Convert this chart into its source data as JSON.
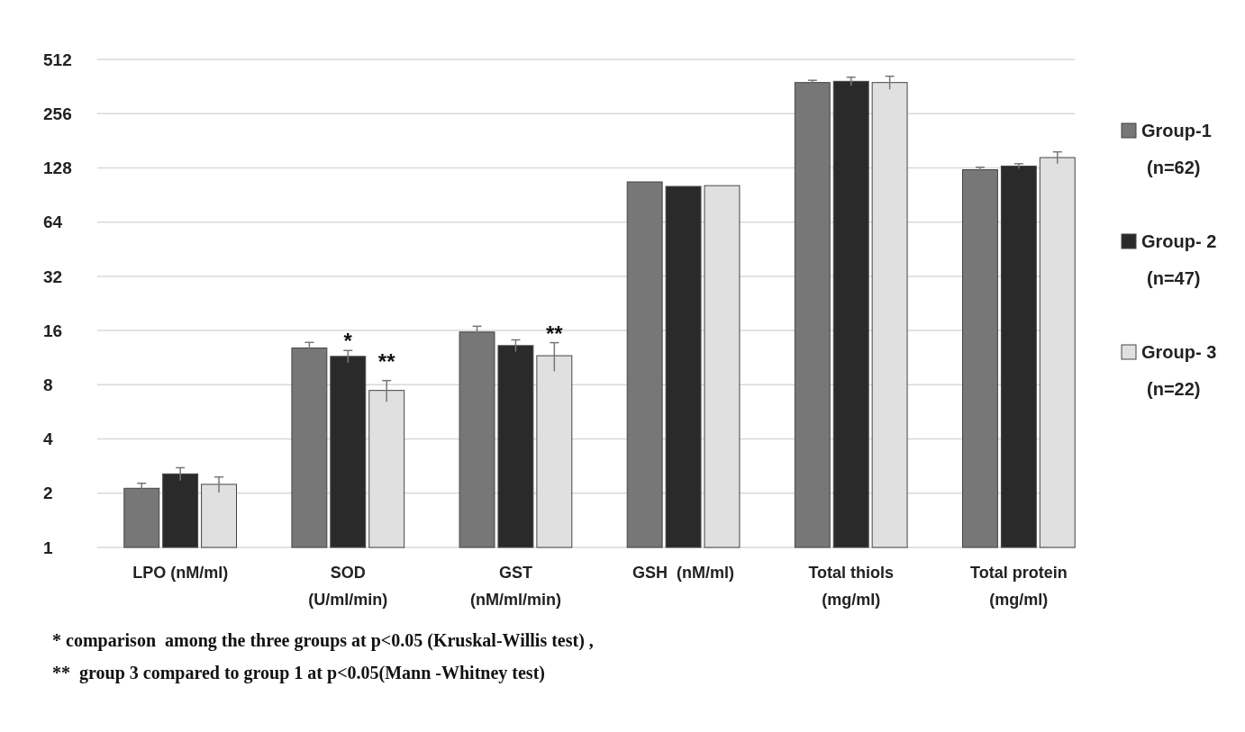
{
  "chart_data": {
    "type": "bar",
    "log": true,
    "grid": "y",
    "legend": "right",
    "categories": [
      "LPO (nM/ml)",
      "SOD\n(U/ml/min)",
      "GST\n(nM/ml/min)",
      "GSH  (nM/ml)",
      "Total thiols\n(mg/ml)",
      "Total protein\n(mg/ml)"
    ],
    "ylim": [
      1,
      512
    ],
    "yticks": [
      1,
      2,
      4,
      8,
      16,
      32,
      64,
      128,
      256,
      512
    ],
    "series": [
      {
        "name": "Group-1\n(n=62)",
        "color": "#777777",
        "values": [
          2.13,
          12.8,
          15.7,
          107,
          381,
          125
        ],
        "errors": [
          0.14,
          0.95,
          1.2,
          null,
          11,
          4
        ]
      },
      {
        "name": "Group- 2\n(n=47)",
        "color": "#2a2a2a",
        "values": [
          2.56,
          11.5,
          13.2,
          101,
          387,
          131
        ],
        "errors": [
          0.21,
          0.9,
          1.0,
          null,
          21,
          4
        ]
      },
      {
        "name": "Group- 3\n(n=22)",
        "color": "#e0e0e0",
        "values": [
          2.24,
          7.44,
          11.6,
          102,
          381,
          146
        ],
        "errors": [
          0.22,
          1.0,
          2.1,
          null,
          32,
          11
        ]
      }
    ],
    "annotations": [
      {
        "text": "*",
        "x": "SOD\n(U/ml/min)",
        "y": 12.4
      },
      {
        "text": "**",
        "x": "SOD\n(U/ml/min)",
        "y": 11.5
      },
      {
        "text": "**",
        "x": "GST\n(nM/ml/min)",
        "y": 13.7
      },
      "* comparison  among the three groups at p<0.05 (Kruskal-Willis test) ,",
      "**  group 3 compared to group 1 at p<0.05(Mann -Whitney test)"
    ]
  }
}
